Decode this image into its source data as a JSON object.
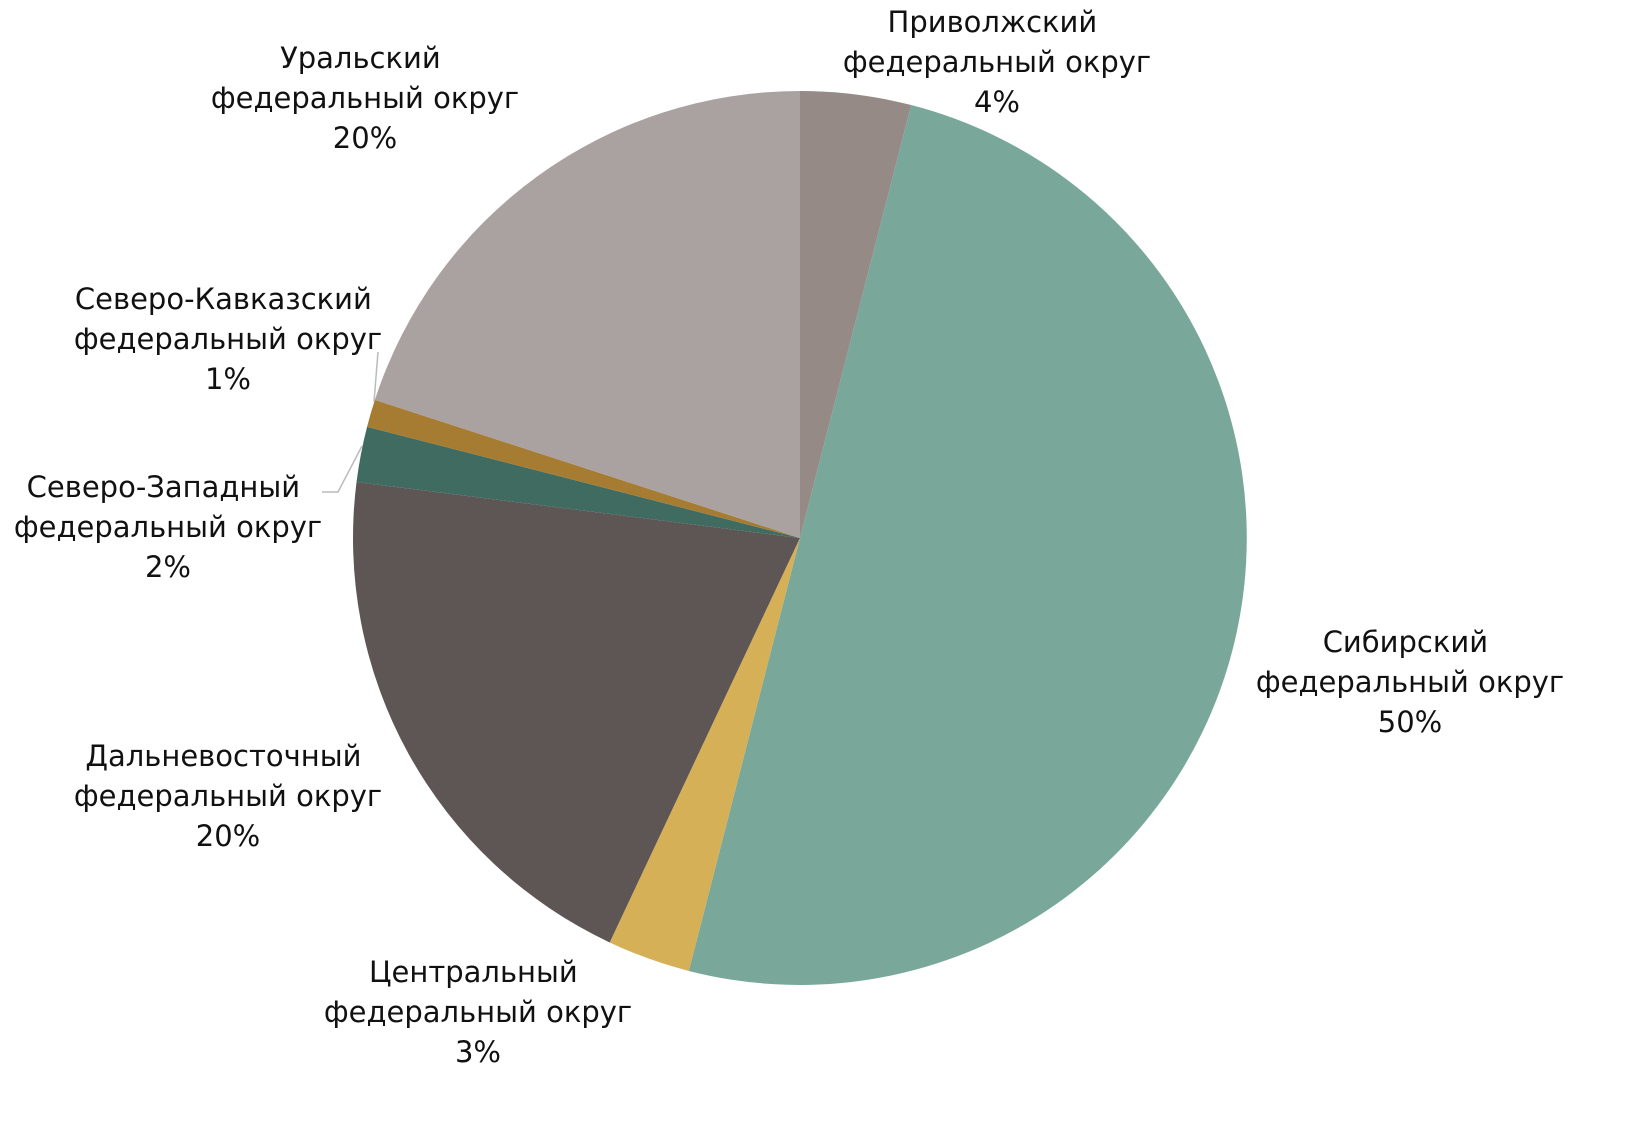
{
  "chart_data": {
    "type": "pie",
    "categories": [
      "Приволжский федеральный округ",
      "Сибирский федеральный округ",
      "Центральный федеральный округ",
      "Дальневосточный федеральный округ",
      "Северо-Западный федеральный округ",
      "Северо-Кавказский федеральный округ",
      "Уральский федеральный округ"
    ],
    "values": [
      4,
      50,
      3,
      20,
      2,
      1,
      20
    ],
    "value_labels": [
      "4%",
      "50%",
      "3%",
      "20%",
      "2%",
      "1%",
      "20%"
    ],
    "colors": [
      "#968a87",
      "#79a89b",
      "#d6b056",
      "#5e5555",
      "#3f6b60",
      "#a57c32",
      "#aaa2a1"
    ]
  }
}
